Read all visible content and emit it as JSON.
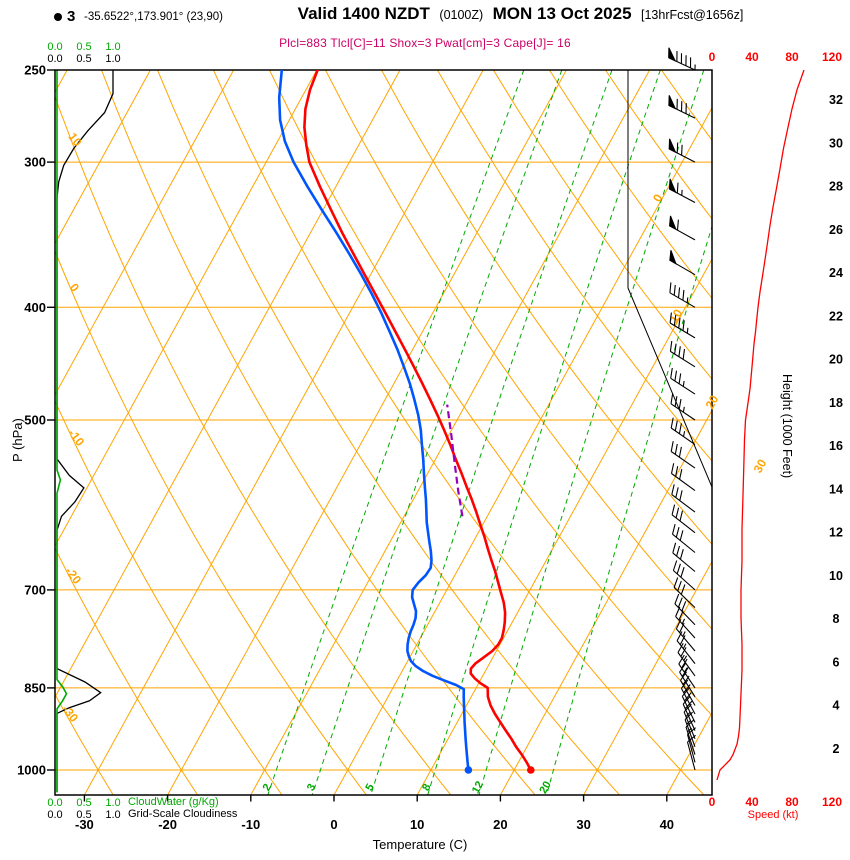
{
  "header": {
    "station_marker": "3",
    "location": "-35.6522°,173.901° (23,90)",
    "valid": "Valid 1400 NZDT",
    "valid_utc": "(0100Z)",
    "valid_date": "MON 13 Oct 2025",
    "forecast_info": "[13hrFcst@1656z]",
    "indices": "Plcl=883 Tlcl[C]=11 Shox=3 Pwat[cm]=3 Cape[J]= 16"
  },
  "axes": {
    "pressure": {
      "label": "P (hPa)",
      "ticks": [
        250,
        300,
        400,
        500,
        700,
        850,
        1000
      ]
    },
    "temperature": {
      "label": "Temperature (C)",
      "ticks": [
        -30,
        -20,
        -10,
        0,
        10,
        20,
        30,
        40
      ]
    },
    "height": {
      "label": "Height (1000 Feet)",
      "ticks": [
        2,
        4,
        6,
        8,
        10,
        12,
        14,
        16,
        18,
        20,
        22,
        24,
        26,
        28,
        30,
        32
      ]
    },
    "speed": {
      "label": "Speed (kt)",
      "ticks": [
        0,
        40,
        80,
        120
      ]
    },
    "cloudwater": {
      "label": "CloudWater (g/Kg)",
      "ticks": [
        "0.0",
        "0.5",
        "1.0"
      ]
    },
    "cloudiness": {
      "label": "Grid-Scale Cloudiness",
      "ticks": [
        "0.0",
        "0.5",
        "1.0"
      ]
    }
  },
  "colors": {
    "grid": "#FFA500",
    "mixing": "#00AA00",
    "temperature": "#FF0000",
    "dewpoint": "#0055FF",
    "parcel": "#9900BB",
    "speed": "#FF0000",
    "cloudwater": "#00AA00",
    "cloudiness": "#000000",
    "indices": "#CC0066"
  },
  "chart_data": {
    "type": "skewt-log-p",
    "pressure_range_hpa": [
      250,
      1050
    ],
    "temp_axis_range_c": [
      -35,
      45
    ],
    "isotherm_step_c": 10,
    "isotherm_labels_c": [
      0,
      10,
      20,
      30
    ],
    "dry_adiabat_labels_c": [
      10,
      0,
      -10,
      -20,
      -30
    ],
    "mixing_ratio_lines_g_kg": [
      2,
      3,
      5,
      8,
      12,
      20
    ],
    "surface": {
      "pressure_hpa": 1000,
      "temperature_c": 22,
      "dewpoint_c": 14.5
    },
    "temperature_c": [
      [
        1000,
        22
      ],
      [
        985,
        21
      ],
      [
        970,
        19.9
      ],
      [
        955,
        18.7
      ],
      [
        940,
        17.6
      ],
      [
        925,
        16.4
      ],
      [
        910,
        15.2
      ],
      [
        895,
        14
      ],
      [
        880,
        12.9
      ],
      [
        865,
        12
      ],
      [
        850,
        11.4
      ],
      [
        842,
        10.2
      ],
      [
        834,
        9.2
      ],
      [
        826,
        8.4
      ],
      [
        818,
        8.1
      ],
      [
        810,
        8.3
      ],
      [
        800,
        8.9
      ],
      [
        790,
        9.5
      ],
      [
        780,
        9.8
      ],
      [
        770,
        9.8
      ],
      [
        758,
        9.5
      ],
      [
        746,
        9.1
      ],
      [
        732,
        8.5
      ],
      [
        718,
        7.7
      ],
      [
        704,
        6.7
      ],
      [
        690,
        5.7
      ],
      [
        675,
        4.6
      ],
      [
        660,
        3.4
      ],
      [
        645,
        2.2
      ],
      [
        630,
        1
      ],
      [
        615,
        -0.3
      ],
      [
        600,
        -1.6
      ],
      [
        585,
        -3
      ],
      [
        570,
        -4.5
      ],
      [
        555,
        -6
      ],
      [
        540,
        -7.6
      ],
      [
        525,
        -9.2
      ],
      [
        510,
        -10.9
      ],
      [
        495,
        -12.7
      ],
      [
        480,
        -14.6
      ],
      [
        465,
        -16.6
      ],
      [
        450,
        -18.7
      ],
      [
        435,
        -20.9
      ],
      [
        420,
        -23.2
      ],
      [
        405,
        -25.6
      ],
      [
        390,
        -28.1
      ],
      [
        375,
        -30.7
      ],
      [
        360,
        -33.4
      ],
      [
        345,
        -36.2
      ],
      [
        330,
        -39
      ],
      [
        315,
        -41.9
      ],
      [
        300,
        -44.8
      ],
      [
        290,
        -46.3
      ],
      [
        280,
        -47.7
      ],
      [
        270,
        -48.8
      ],
      [
        260,
        -49.5
      ],
      [
        250,
        -49.9
      ]
    ],
    "dewpoint_c": [
      [
        1000,
        14.5
      ],
      [
        985,
        13.9
      ],
      [
        970,
        13.3
      ],
      [
        955,
        12.7
      ],
      [
        940,
        12.1
      ],
      [
        925,
        11.5
      ],
      [
        910,
        10.9
      ],
      [
        895,
        10.3
      ],
      [
        880,
        9.7
      ],
      [
        865,
        9.1
      ],
      [
        852,
        8.6
      ],
      [
        845,
        7.4
      ],
      [
        838,
        5.8
      ],
      [
        830,
        4
      ],
      [
        822,
        2.5
      ],
      [
        814,
        1.3
      ],
      [
        806,
        0.4
      ],
      [
        798,
        -0.2
      ],
      [
        790,
        -0.7
      ],
      [
        780,
        -1.1
      ],
      [
        770,
        -1.4
      ],
      [
        760,
        -1.6
      ],
      [
        750,
        -1.7
      ],
      [
        740,
        -1.9
      ],
      [
        730,
        -2.3
      ],
      [
        720,
        -3
      ],
      [
        710,
        -3.7
      ],
      [
        700,
        -4.1
      ],
      [
        690,
        -3.9
      ],
      [
        680,
        -3.5
      ],
      [
        670,
        -3.4
      ],
      [
        660,
        -3.8
      ],
      [
        648,
        -4.5
      ],
      [
        636,
        -5.3
      ],
      [
        624,
        -6.1
      ],
      [
        612,
        -6.9
      ],
      [
        600,
        -7.6
      ],
      [
        585,
        -8.5
      ],
      [
        570,
        -9.5
      ],
      [
        555,
        -10.5
      ],
      [
        540,
        -11.5
      ],
      [
        525,
        -12.6
      ],
      [
        510,
        -13.7
      ],
      [
        495,
        -15
      ],
      [
        480,
        -16.5
      ],
      [
        465,
        -18.1
      ],
      [
        450,
        -19.9
      ],
      [
        435,
        -21.8
      ],
      [
        420,
        -23.9
      ],
      [
        405,
        -26.1
      ],
      [
        390,
        -28.5
      ],
      [
        375,
        -31.1
      ],
      [
        360,
        -33.9
      ],
      [
        345,
        -36.9
      ],
      [
        330,
        -40.1
      ],
      [
        315,
        -43.4
      ],
      [
        300,
        -46.7
      ],
      [
        288,
        -49.1
      ],
      [
        276,
        -51.1
      ],
      [
        264,
        -52.7
      ],
      [
        250,
        -54.2
      ]
    ],
    "parcel_path_c": [
      [
        605,
        -3
      ],
      [
        575,
        -5.2
      ],
      [
        545,
        -7.4
      ],
      [
        515,
        -9.7
      ],
      [
        485,
        -12.2
      ]
    ],
    "wind_speed_kt": [
      [
        1020,
        5
      ],
      [
        1010,
        6.5
      ],
      [
        1000,
        8
      ],
      [
        990,
        13
      ],
      [
        980,
        18
      ],
      [
        970,
        21
      ],
      [
        960,
        23
      ],
      [
        950,
        25
      ],
      [
        935,
        26.5
      ],
      [
        920,
        27.5
      ],
      [
        900,
        28
      ],
      [
        880,
        28.5
      ],
      [
        860,
        29
      ],
      [
        840,
        29.5
      ],
      [
        820,
        30
      ],
      [
        800,
        30
      ],
      [
        780,
        30
      ],
      [
        760,
        29.5
      ],
      [
        740,
        29
      ],
      [
        720,
        29
      ],
      [
        700,
        29
      ],
      [
        680,
        29.5
      ],
      [
        660,
        30
      ],
      [
        640,
        30
      ],
      [
        620,
        30
      ],
      [
        600,
        30.5
      ],
      [
        580,
        31
      ],
      [
        560,
        31.5
      ],
      [
        540,
        32
      ],
      [
        520,
        32.5
      ],
      [
        500,
        33.5
      ],
      [
        490,
        35
      ],
      [
        480,
        36.5
      ],
      [
        470,
        38
      ],
      [
        460,
        39
      ],
      [
        450,
        40
      ],
      [
        440,
        41
      ],
      [
        430,
        42
      ],
      [
        420,
        43.5
      ],
      [
        410,
        44.7
      ],
      [
        400,
        46
      ],
      [
        388,
        48
      ],
      [
        376,
        50.5
      ],
      [
        364,
        53
      ],
      [
        352,
        55.5
      ],
      [
        340,
        58
      ],
      [
        328,
        61
      ],
      [
        316,
        64.5
      ],
      [
        304,
        68
      ],
      [
        292,
        71.5
      ],
      [
        280,
        76
      ],
      [
        270,
        80
      ],
      [
        260,
        85
      ],
      [
        250,
        92
      ]
    ],
    "wind_barbs": [
      [
        1000,
        345,
        10
      ],
      [
        985,
        345,
        12
      ],
      [
        970,
        342,
        14
      ],
      [
        955,
        340,
        15
      ],
      [
        940,
        338,
        16
      ],
      [
        925,
        336,
        18
      ],
      [
        910,
        334,
        19
      ],
      [
        895,
        332,
        20
      ],
      [
        880,
        330,
        21
      ],
      [
        865,
        328,
        22
      ],
      [
        850,
        326,
        23
      ],
      [
        830,
        324,
        24
      ],
      [
        810,
        322,
        25
      ],
      [
        790,
        320,
        26
      ],
      [
        770,
        318,
        27
      ],
      [
        750,
        316,
        28
      ],
      [
        725,
        314,
        28
      ],
      [
        700,
        312,
        29
      ],
      [
        675,
        310,
        29
      ],
      [
        650,
        309,
        30
      ],
      [
        625,
        308,
        30
      ],
      [
        600,
        307,
        31
      ],
      [
        575,
        306,
        31
      ],
      [
        550,
        305,
        32
      ],
      [
        525,
        305,
        33
      ],
      [
        500,
        304,
        34
      ],
      [
        475,
        303,
        37
      ],
      [
        450,
        302,
        40
      ],
      [
        425,
        301,
        43
      ],
      [
        400,
        300,
        47
      ],
      [
        375,
        300,
        52
      ],
      [
        350,
        299,
        58
      ],
      [
        325,
        298,
        64
      ],
      [
        300,
        297,
        71
      ],
      [
        275,
        296,
        81
      ],
      [
        250,
        295,
        93
      ]
    ],
    "grid_scale_cloudiness": [
      [
        250,
        1
      ],
      [
        262,
        1
      ],
      [
        272,
        0.85
      ],
      [
        282,
        0.55
      ],
      [
        292,
        0.3
      ],
      [
        302,
        0.12
      ],
      [
        312,
        0.03
      ],
      [
        322,
        0
      ],
      [
        540,
        0
      ],
      [
        558,
        0.22
      ],
      [
        572,
        0.48
      ],
      [
        588,
        0.32
      ],
      [
        605,
        0.08
      ],
      [
        622,
        0
      ],
      [
        818,
        0
      ],
      [
        840,
        0.5
      ],
      [
        858,
        0.78
      ],
      [
        872,
        0.58
      ],
      [
        884,
        0.22
      ],
      [
        894,
        0
      ],
      [
        1045,
        0
      ]
    ],
    "cloud_water_g_kg": [
      [
        250,
        0
      ],
      [
        552,
        0
      ],
      [
        563,
        0.06
      ],
      [
        578,
        0
      ],
      [
        836,
        0
      ],
      [
        848,
        0.1
      ],
      [
        860,
        0.17
      ],
      [
        872,
        0.1
      ],
      [
        886,
        0
      ],
      [
        1045,
        0
      ]
    ]
  }
}
